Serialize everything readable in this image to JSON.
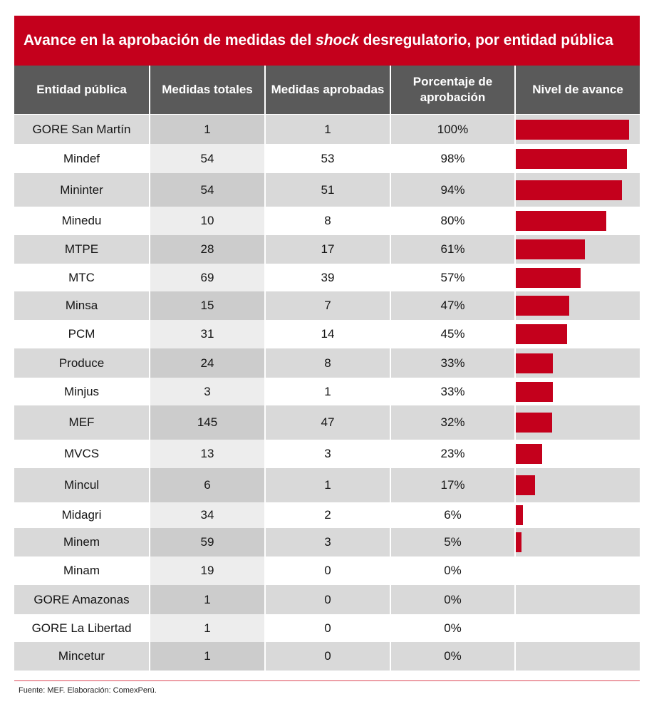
{
  "colors": {
    "title_bg": "#C4001C",
    "header_bg": "#5A5A5A",
    "bar": "#C4001C",
    "row_shade": "#D9D9D9",
    "rule": "#DC4655"
  },
  "chart_data": {
    "type": "table",
    "title": {
      "before": "Avance en la aprobación de medidas del ",
      "emphasis": "shock",
      "after": " desregulatorio, por entidad pública"
    },
    "columns": [
      "Entidad pública",
      "Medidas totales",
      "Medidas aprobadas",
      "Porcentaje de aprobación",
      "Nivel de avance"
    ],
    "xlim": [
      0,
      100
    ],
    "rows": [
      {
        "entidad": "GORE San Martín",
        "totales": 1,
        "aprobadas": 1,
        "porcentaje": "100%",
        "avance": 100
      },
      {
        "entidad": "Mindef",
        "totales": 54,
        "aprobadas": 53,
        "porcentaje": "98%",
        "avance": 98
      },
      {
        "entidad": "Mininter",
        "totales": 54,
        "aprobadas": 51,
        "porcentaje": "94%",
        "avance": 94
      },
      {
        "entidad": "Minedu",
        "totales": 10,
        "aprobadas": 8,
        "porcentaje": "80%",
        "avance": 80
      },
      {
        "entidad": "MTPE",
        "totales": 28,
        "aprobadas": 17,
        "porcentaje": "61%",
        "avance": 61
      },
      {
        "entidad": "MTC",
        "totales": 69,
        "aprobadas": 39,
        "porcentaje": "57%",
        "avance": 57
      },
      {
        "entidad": "Minsa",
        "totales": 15,
        "aprobadas": 7,
        "porcentaje": "47%",
        "avance": 47
      },
      {
        "entidad": "PCM",
        "totales": 31,
        "aprobadas": 14,
        "porcentaje": "45%",
        "avance": 45
      },
      {
        "entidad": "Produce",
        "totales": 24,
        "aprobadas": 8,
        "porcentaje": "33%",
        "avance": 33
      },
      {
        "entidad": "Minjus",
        "totales": 3,
        "aprobadas": 1,
        "porcentaje": "33%",
        "avance": 33
      },
      {
        "entidad": "MEF",
        "totales": 145,
        "aprobadas": 47,
        "porcentaje": "32%",
        "avance": 32
      },
      {
        "entidad": "MVCS",
        "totales": 13,
        "aprobadas": 3,
        "porcentaje": "23%",
        "avance": 23
      },
      {
        "entidad": "Mincul",
        "totales": 6,
        "aprobadas": 1,
        "porcentaje": "17%",
        "avance": 17
      },
      {
        "entidad": "Midagri",
        "totales": 34,
        "aprobadas": 2,
        "porcentaje": "6%",
        "avance": 6
      },
      {
        "entidad": "Minem",
        "totales": 59,
        "aprobadas": 3,
        "porcentaje": "5%",
        "avance": 5
      },
      {
        "entidad": "Minam",
        "totales": 19,
        "aprobadas": 0,
        "porcentaje": "0%",
        "avance": 0
      },
      {
        "entidad": "GORE Amazonas",
        "totales": 1,
        "aprobadas": 0,
        "porcentaje": "0%",
        "avance": 0
      },
      {
        "entidad": "GORE La Libertad",
        "totales": 1,
        "aprobadas": 0,
        "porcentaje": "0%",
        "avance": 0
      },
      {
        "entidad": "Mincetur",
        "totales": 1,
        "aprobadas": 0,
        "porcentaje": "0%",
        "avance": 0
      }
    ]
  },
  "source": "Fuente: MEF. Elaboración: ComexPerú."
}
